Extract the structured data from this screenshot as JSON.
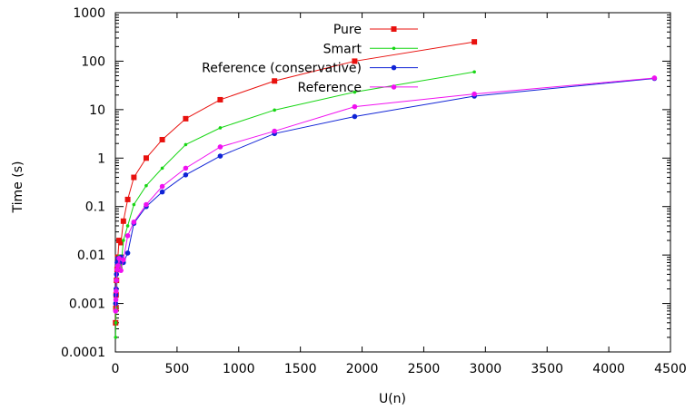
{
  "chart_data": {
    "type": "line",
    "title": "",
    "xlabel": "U(n)",
    "ylabel": "Time (s)",
    "xlim": [
      0,
      4500
    ],
    "ylim": [
      0.0001,
      1000
    ],
    "yscale": "log",
    "grid": false,
    "legend_position": "top-center",
    "x_ticks": [
      0,
      500,
      1000,
      1500,
      2000,
      2500,
      3000,
      3500,
      4000,
      4500
    ],
    "x_tick_labels": [
      "0",
      "500",
      "1000",
      "1500",
      "2000",
      "2500",
      "3000",
      "3500",
      "4000",
      "4500"
    ],
    "y_ticks": [
      0.0001,
      0.001,
      0.01,
      0.1,
      1,
      10,
      100,
      1000
    ],
    "y_tick_labels": [
      "0.0001",
      "0.001",
      "0.01",
      "0.1",
      "1",
      "10",
      "100",
      "1000"
    ],
    "series": [
      {
        "name": "Pure",
        "color": "#e8110e",
        "marker": "square",
        "points": [
          [
            2,
            0.0004
          ],
          [
            4,
            0.0008
          ],
          [
            6,
            0.0015
          ],
          [
            9,
            0.003
          ],
          [
            14,
            0.005
          ],
          [
            20,
            0.009
          ],
          [
            30,
            0.02
          ],
          [
            45,
            0.018
          ],
          [
            65,
            0.05
          ],
          [
            100,
            0.14
          ],
          [
            150,
            0.4
          ],
          [
            250,
            1.0
          ],
          [
            380,
            2.4
          ],
          [
            570,
            6.5
          ],
          [
            850,
            16
          ],
          [
            1290,
            39
          ],
          [
            1940,
            100
          ],
          [
            2910,
            250
          ]
        ]
      },
      {
        "name": "Smart",
        "color": "#16d613",
        "marker": "dot",
        "points": [
          [
            2,
            0.0002
          ],
          [
            4,
            0.0004
          ],
          [
            6,
            0.0008
          ],
          [
            9,
            0.0015
          ],
          [
            14,
            0.003
          ],
          [
            20,
            0.006
          ],
          [
            30,
            0.0095
          ],
          [
            45,
            0.0055
          ],
          [
            65,
            0.02
          ],
          [
            100,
            0.04
          ],
          [
            150,
            0.11
          ],
          [
            250,
            0.27
          ],
          [
            380,
            0.62
          ],
          [
            570,
            1.9
          ],
          [
            850,
            4.2
          ],
          [
            1290,
            9.8
          ],
          [
            1940,
            23
          ],
          [
            2910,
            60
          ]
        ]
      },
      {
        "name": "Reference (conservative)",
        "color": "#0f23d6",
        "marker": "circle",
        "points": [
          [
            2,
            0.001
          ],
          [
            4,
            0.0015
          ],
          [
            6,
            0.002
          ],
          [
            9,
            0.004
          ],
          [
            14,
            0.007
          ],
          [
            20,
            0.0085
          ],
          [
            30,
            0.007
          ],
          [
            45,
            0.009
          ],
          [
            65,
            0.007
          ],
          [
            100,
            0.011
          ],
          [
            150,
            0.045
          ],
          [
            250,
            0.1
          ],
          [
            380,
            0.2
          ],
          [
            570,
            0.45
          ],
          [
            850,
            1.1
          ],
          [
            1290,
            3.2
          ],
          [
            1940,
            7.2
          ],
          [
            2910,
            19
          ],
          [
            4370,
            44
          ]
        ]
      },
      {
        "name": "Reference",
        "color": "#f011f0",
        "marker": "circle",
        "points": [
          [
            2,
            0.0007
          ],
          [
            4,
            0.0012
          ],
          [
            6,
            0.0018
          ],
          [
            9,
            0.003
          ],
          [
            14,
            0.005
          ],
          [
            20,
            0.006
          ],
          [
            30,
            0.0085
          ],
          [
            45,
            0.0048
          ],
          [
            65,
            0.008
          ],
          [
            100,
            0.025
          ],
          [
            150,
            0.048
          ],
          [
            250,
            0.11
          ],
          [
            380,
            0.26
          ],
          [
            570,
            0.62
          ],
          [
            850,
            1.7
          ],
          [
            1290,
            3.6
          ],
          [
            1940,
            11.5
          ],
          [
            2910,
            21
          ],
          [
            4370,
            45
          ]
        ]
      }
    ]
  }
}
